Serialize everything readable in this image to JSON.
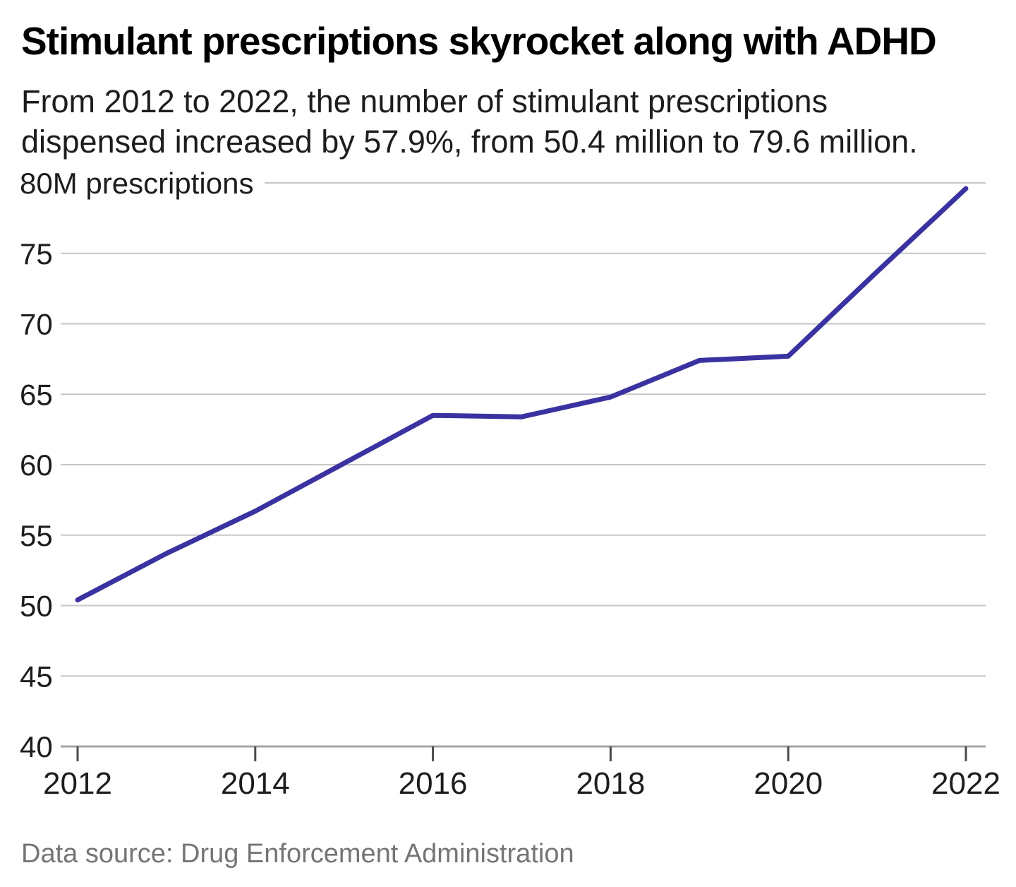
{
  "header": {
    "title": "Stimulant prescriptions skyrocket along with ADHD",
    "subtitle_lines": [
      "From 2012 to 2022, the number of stimulant prescriptions",
      "dispensed increased by 57.9%, from 50.4 million to 79.6 million."
    ]
  },
  "footer": {
    "source": "Data source: Drug Enforcement Administration"
  },
  "chart_data": {
    "type": "line",
    "title": "Stimulant prescriptions skyrocket along with ADHD",
    "x": [
      2012,
      2013,
      2014,
      2015,
      2016,
      2017,
      2018,
      2019,
      2020,
      2021,
      2022
    ],
    "series": [
      {
        "name": "Stimulant prescriptions dispensed (millions)",
        "values": [
          50.4,
          53.7,
          56.7,
          60.1,
          63.5,
          63.4,
          64.8,
          67.4,
          67.7,
          73.7,
          79.6
        ]
      }
    ],
    "xlabel": "",
    "ylabel": "prescriptions (millions)",
    "ylim": [
      40,
      80
    ],
    "y_ticks": [
      40,
      45,
      50,
      55,
      60,
      65,
      70,
      75,
      80
    ],
    "y_top_tick_label": "80M prescriptions",
    "x_ticks": [
      2012,
      2014,
      2016,
      2018,
      2020,
      2022
    ],
    "grid": "horizontal",
    "legend": "none",
    "colors": {
      "line": "#3a32a0",
      "grid": "#c7c7c7",
      "axis": "#a5a5a5",
      "tick": "#4a4a4a",
      "axis_label": "#1d1d1d"
    }
  }
}
